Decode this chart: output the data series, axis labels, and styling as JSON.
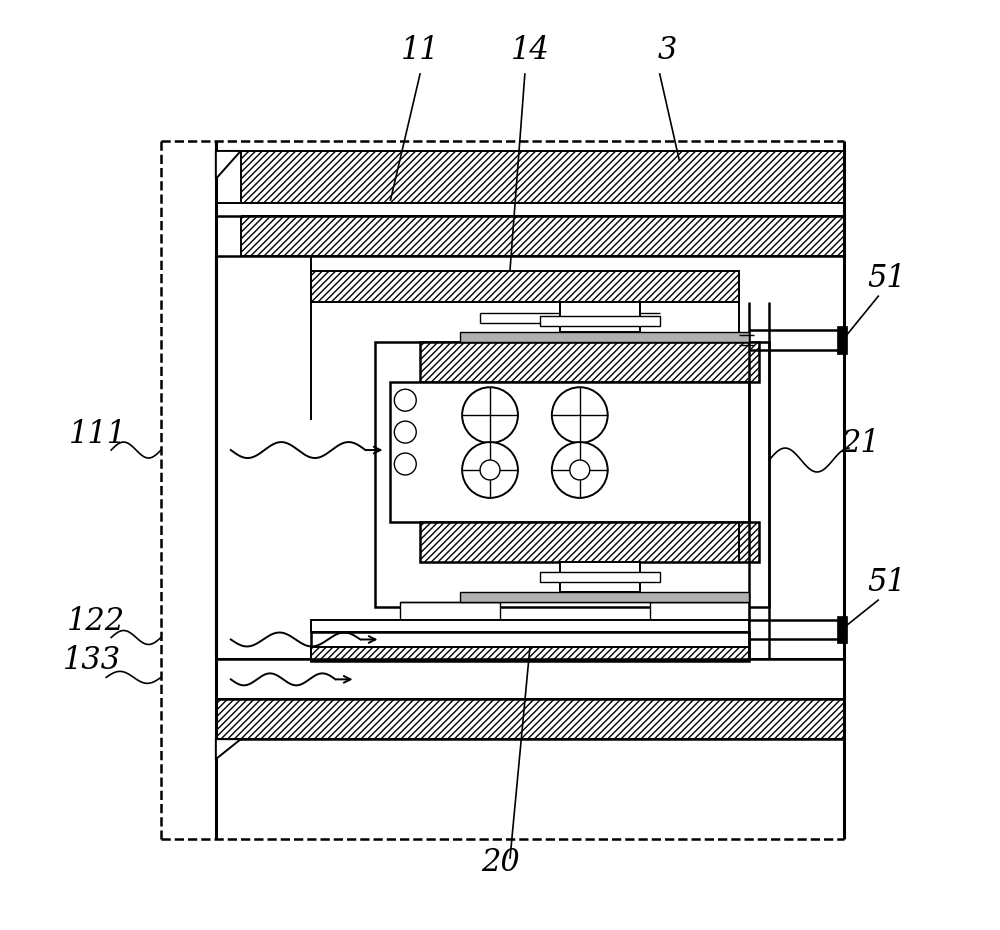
{
  "bg_color": "#ffffff",
  "fig_width": 10.0,
  "fig_height": 9.3
}
